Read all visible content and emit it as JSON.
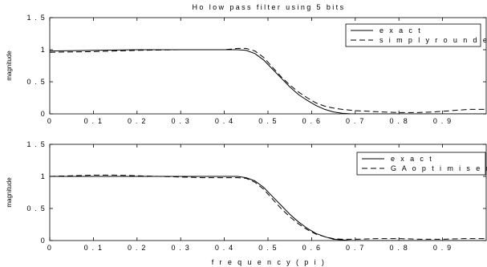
{
  "chart_data": [
    {
      "type": "line",
      "title": "Ho low pass filter using 5 bits",
      "xlabel": "",
      "ylabel": "magnitude",
      "xlim": [
        0,
        1
      ],
      "ylim": [
        0,
        1.5
      ],
      "xticks": [
        0,
        0.1,
        0.2,
        0.3,
        0.4,
        0.5,
        0.6,
        0.7,
        0.8,
        0.9
      ],
      "xtick_labels": [
        "0",
        "0 . 1",
        "0 . 2",
        "0 . 3",
        "0 . 4",
        "0 . 5",
        "0 . 6",
        "0 . 7",
        "0 . 8",
        "0 . 9"
      ],
      "yticks": [
        0,
        0.5,
        1,
        1.5
      ],
      "ytick_labels": [
        "0",
        "0 . 5",
        "1",
        "1 . 5"
      ],
      "grid": false,
      "legend": "top-right",
      "series": [
        {
          "name": "e x a c t",
          "style": "solid",
          "x": [
            0,
            0.1,
            0.2,
            0.3,
            0.35,
            0.4,
            0.43,
            0.45,
            0.47,
            0.49,
            0.51,
            0.53,
            0.55,
            0.57,
            0.59,
            0.61,
            0.63,
            0.65,
            0.67,
            0.69,
            0.72,
            0.76,
            0.8,
            0.85,
            0.9,
            0.95,
            1.0
          ],
          "y": [
            0.98,
            0.99,
            1.0,
            1.0,
            1.0,
            1.0,
            1.0,
            0.99,
            0.94,
            0.84,
            0.7,
            0.56,
            0.42,
            0.3,
            0.21,
            0.13,
            0.07,
            0.03,
            0.01,
            0.0,
            0.0,
            0.0,
            0.0,
            0.0,
            0.0,
            0.0,
            0.0
          ]
        },
        {
          "name": "s i m p l y  r o u n d e d",
          "style": "dashed",
          "x": [
            0,
            0.1,
            0.2,
            0.3,
            0.35,
            0.4,
            0.43,
            0.45,
            0.47,
            0.49,
            0.51,
            0.53,
            0.55,
            0.57,
            0.59,
            0.61,
            0.63,
            0.65,
            0.67,
            0.7,
            0.73,
            0.76,
            0.8,
            0.84,
            0.88,
            0.92,
            0.96,
            1.0
          ],
          "y": [
            0.96,
            0.97,
            0.99,
            1.0,
            1.0,
            1.0,
            1.02,
            1.02,
            0.98,
            0.88,
            0.73,
            0.58,
            0.45,
            0.34,
            0.25,
            0.17,
            0.12,
            0.09,
            0.07,
            0.05,
            0.04,
            0.03,
            0.02,
            0.02,
            0.03,
            0.05,
            0.07,
            0.07
          ]
        }
      ]
    },
    {
      "type": "line",
      "title": "",
      "xlabel": "f r e q u e n c y  ( p i )",
      "ylabel": "magnitude",
      "xlim": [
        0,
        1
      ],
      "ylim": [
        0,
        1.5
      ],
      "xticks": [
        0,
        0.1,
        0.2,
        0.3,
        0.4,
        0.5,
        0.6,
        0.7,
        0.8,
        0.9
      ],
      "xtick_labels": [
        "0",
        "0 . 1",
        "0 . 2",
        "0 . 3",
        "0 . 4",
        "0 . 5",
        "0 . 6",
        "0 . 7",
        "0 . 8",
        "0 . 9"
      ],
      "yticks": [
        0,
        0.5,
        1,
        1.5
      ],
      "ytick_labels": [
        "0",
        "0 . 5",
        "1",
        "1 . 5"
      ],
      "grid": false,
      "legend": "top-right",
      "series": [
        {
          "name": "e x a c t",
          "style": "solid",
          "x": [
            0,
            0.1,
            0.2,
            0.3,
            0.35,
            0.4,
            0.43,
            0.45,
            0.47,
            0.49,
            0.51,
            0.53,
            0.55,
            0.57,
            0.59,
            0.61,
            0.63,
            0.65,
            0.67,
            0.69,
            0.72,
            0.76,
            0.8,
            0.85,
            0.9,
            0.95,
            1.0
          ],
          "y": [
            1.0,
            1.0,
            1.0,
            1.0,
            1.0,
            1.0,
            1.0,
            0.98,
            0.93,
            0.83,
            0.69,
            0.55,
            0.41,
            0.29,
            0.19,
            0.11,
            0.06,
            0.02,
            0.01,
            0.0,
            0.0,
            0.0,
            0.0,
            0.0,
            0.0,
            0.0,
            0.0
          ]
        },
        {
          "name": "G A  o p t i m i s e d",
          "style": "dashed",
          "x": [
            0,
            0.05,
            0.1,
            0.15,
            0.2,
            0.25,
            0.3,
            0.35,
            0.4,
            0.43,
            0.45,
            0.47,
            0.49,
            0.51,
            0.53,
            0.55,
            0.57,
            0.59,
            0.61,
            0.63,
            0.65,
            0.67,
            0.7,
            0.75,
            0.8,
            0.85,
            0.9,
            0.95,
            1.0
          ],
          "y": [
            1.0,
            1.01,
            1.02,
            1.02,
            1.01,
            1.0,
            0.99,
            0.98,
            0.98,
            0.98,
            0.97,
            0.91,
            0.8,
            0.65,
            0.5,
            0.37,
            0.26,
            0.17,
            0.1,
            0.06,
            0.03,
            0.02,
            0.02,
            0.03,
            0.03,
            0.02,
            0.02,
            0.03,
            0.03
          ]
        }
      ]
    }
  ]
}
